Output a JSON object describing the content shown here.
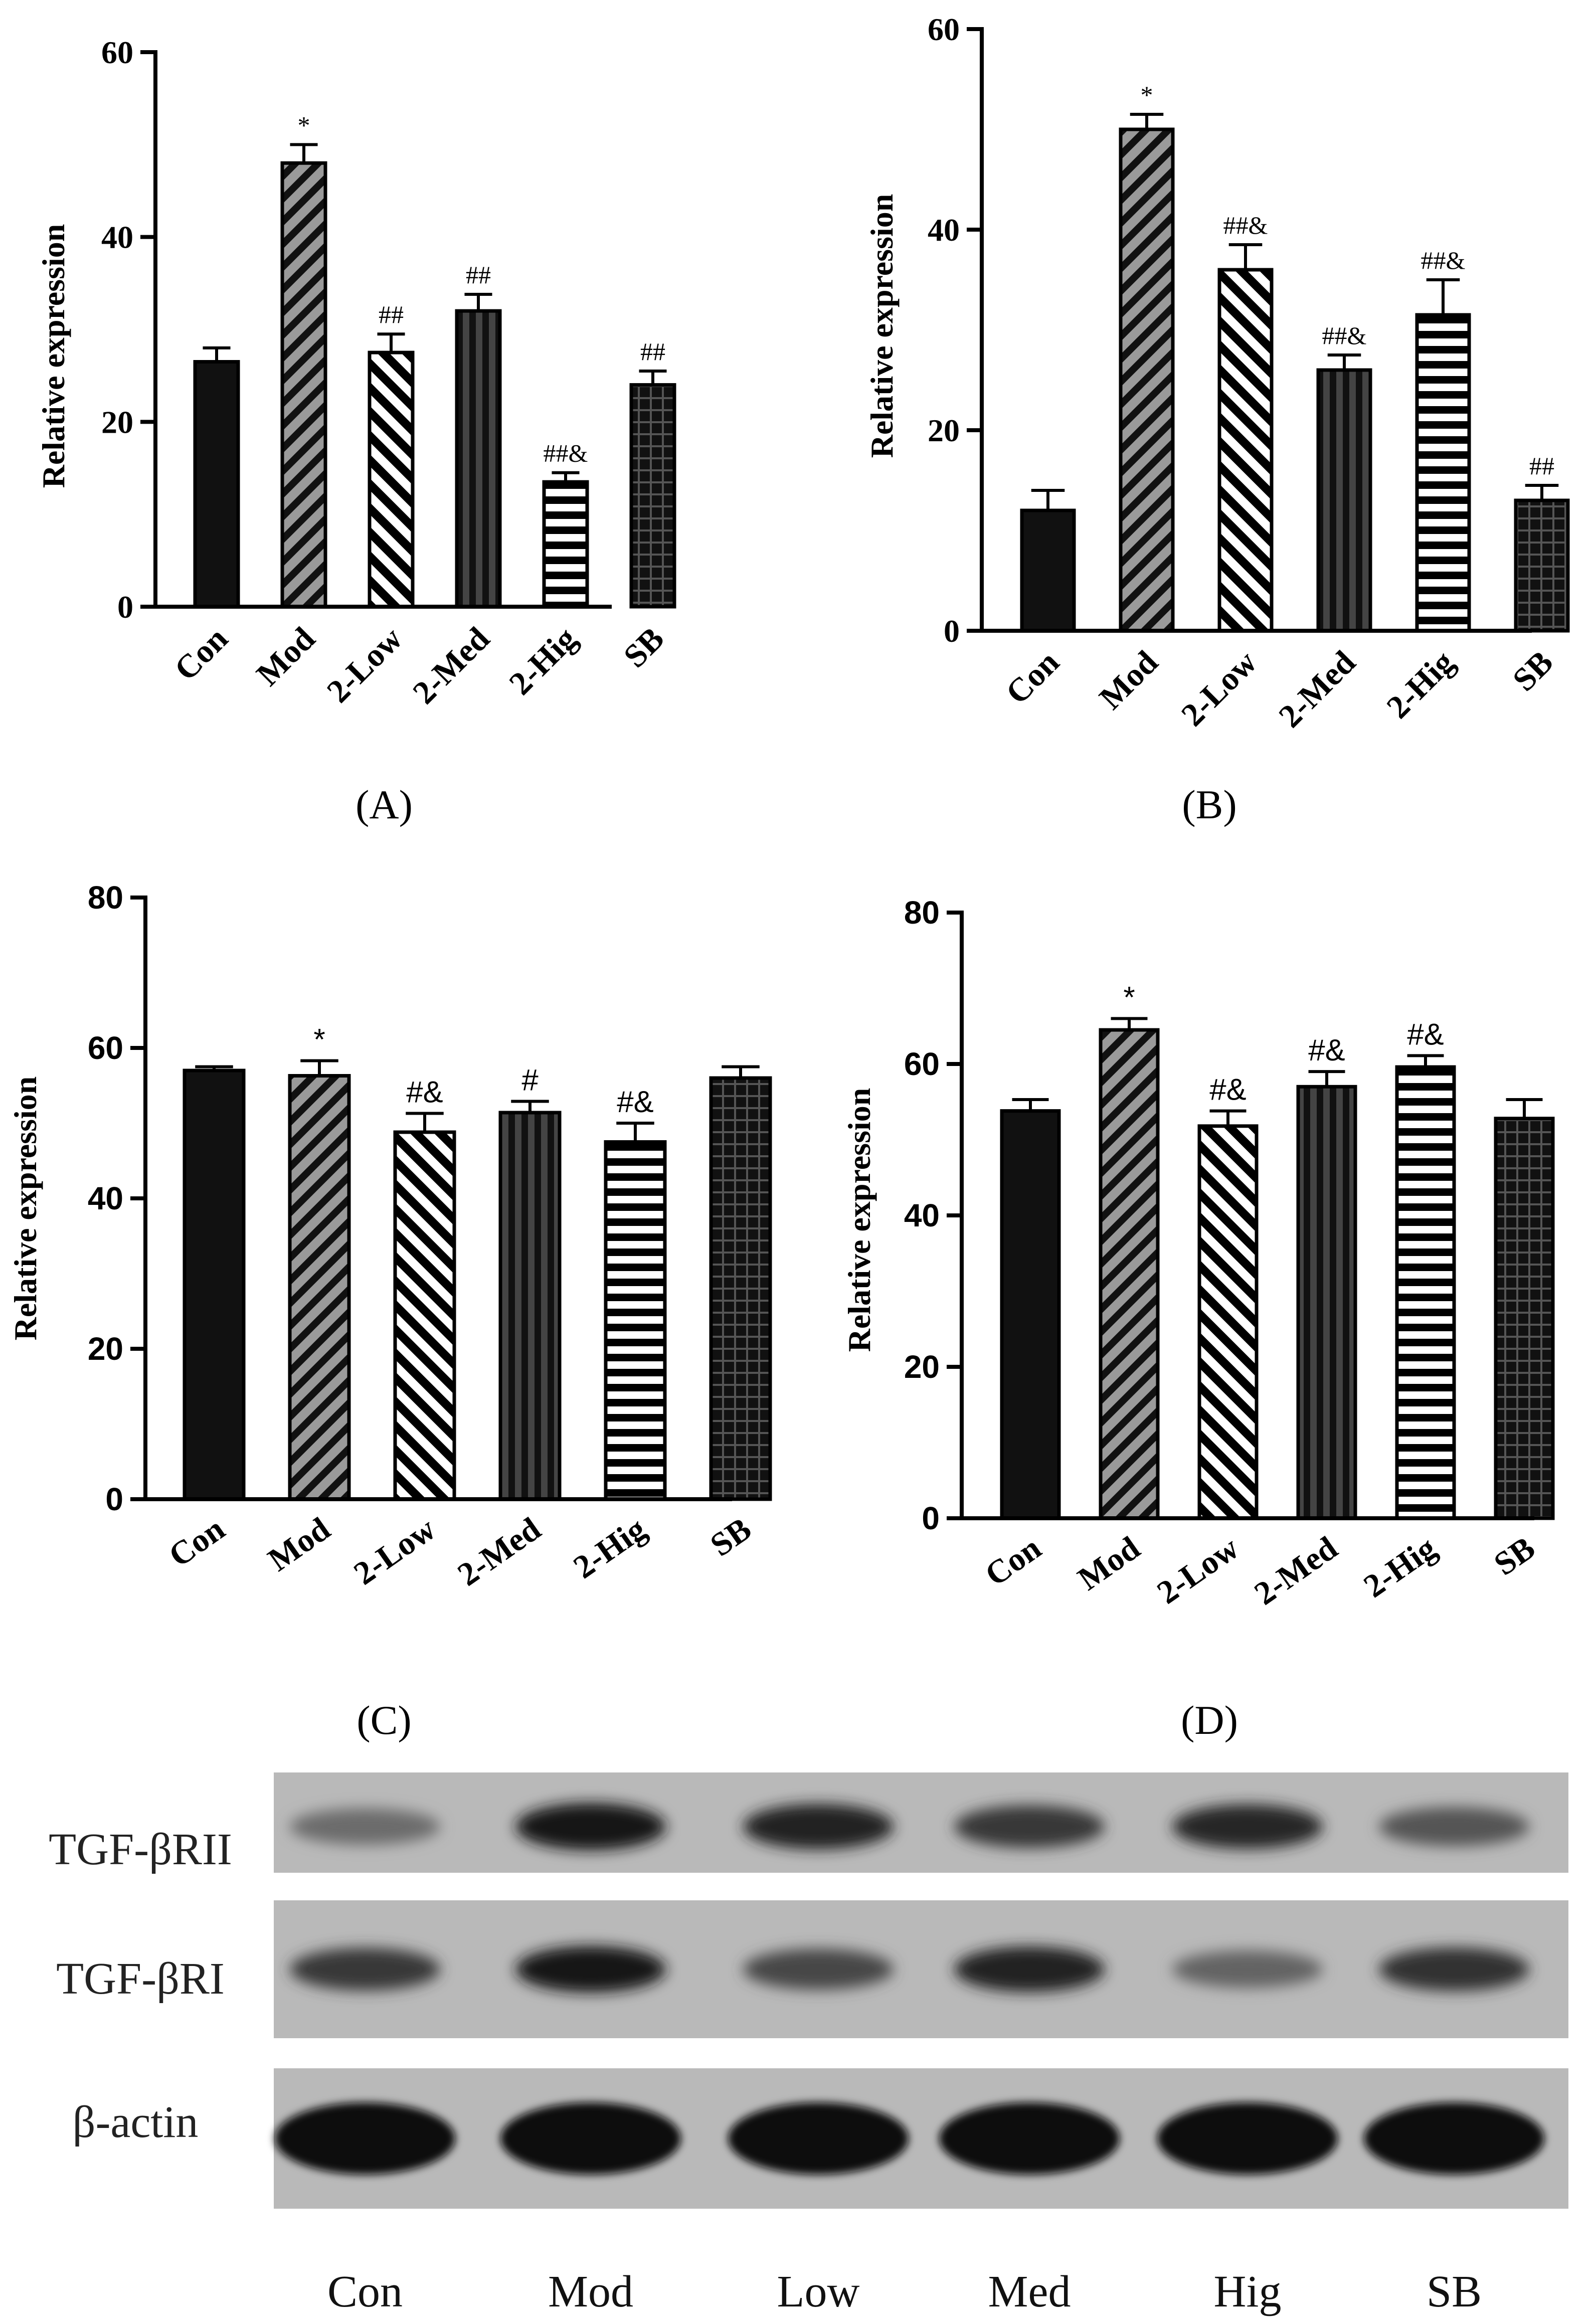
{
  "chart_data": [
    {
      "type": "bar",
      "panel": "A",
      "ylabel": "Relative expression",
      "ylim": [
        0,
        60
      ],
      "yticks": [
        "0",
        "20",
        "40",
        "60"
      ],
      "categories": [
        "Con",
        "Mod",
        "2-Low",
        "2-Med",
        "2-Hig",
        "SB"
      ],
      "values": [
        26.5,
        48.0,
        27.5,
        32.0,
        13.5,
        24.0
      ],
      "errors": [
        1.5,
        2.0,
        2.0,
        1.8,
        1.0,
        1.5
      ],
      "annotations": [
        "",
        "*",
        "##",
        "##",
        "##&",
        "##"
      ]
    },
    {
      "type": "bar",
      "panel": "B",
      "ylabel": "Relative expression",
      "ylim": [
        0,
        60
      ],
      "yticks": [
        "0",
        "20",
        "40",
        "60"
      ],
      "categories": [
        "Con",
        "Mod",
        "2-Low",
        "2-Med",
        "2-Hig",
        "SB"
      ],
      "values": [
        12.0,
        50.0,
        36.0,
        26.0,
        31.5,
        13.0
      ],
      "errors": [
        2.0,
        1.5,
        2.5,
        1.5,
        3.5,
        1.5
      ],
      "annotations": [
        "",
        "*",
        "##&",
        "##&",
        "##&",
        "##"
      ]
    },
    {
      "type": "bar",
      "panel": "C",
      "ylabel": "Relative expression",
      "ylim": [
        0,
        80
      ],
      "yticks": [
        "0",
        "20",
        "40",
        "60",
        "80"
      ],
      "categories": [
        "Con",
        "Mod",
        "2-Low",
        "2-Med",
        "2-Hig",
        "SB"
      ],
      "values": [
        57.0,
        56.3,
        48.8,
        51.4,
        47.5,
        56.0
      ],
      "errors": [
        0.5,
        2.0,
        2.5,
        1.5,
        2.5,
        1.5
      ],
      "annotations": [
        "",
        "*",
        "#&",
        "#",
        "#&",
        ""
      ]
    },
    {
      "type": "bar",
      "panel": "D",
      "ylabel": "Relative expression",
      "ylim": [
        0,
        80
      ],
      "yticks": [
        "0",
        "20",
        "40",
        "60",
        "80"
      ],
      "categories": [
        "Con",
        "Mod",
        "2-Low",
        "2-Med",
        "2-Hig",
        "SB"
      ],
      "values": [
        53.8,
        64.5,
        51.8,
        57.0,
        59.6,
        52.8
      ],
      "errors": [
        1.5,
        1.5,
        2.0,
        2.0,
        1.5,
        2.5
      ],
      "annotations": [
        "",
        "*",
        "#&",
        "#&",
        "#&",
        ""
      ]
    }
  ],
  "panel_labels": [
    "(A)",
    "(B)",
    "(C)",
    "(D)"
  ],
  "blot": {
    "rows": [
      "TGF-βRII",
      "TGF-βRI",
      "β-actin"
    ],
    "lanes": [
      "Con",
      "Mod",
      "Low",
      "Med",
      "Hig",
      "SB"
    ],
    "intensity": [
      [
        0.35,
        0.95,
        0.85,
        0.7,
        0.8,
        0.5
      ],
      [
        0.7,
        0.9,
        0.6,
        0.85,
        0.4,
        0.75
      ],
      [
        1.0,
        1.0,
        1.0,
        1.0,
        1.0,
        1.0
      ]
    ]
  },
  "colors": {
    "bar_dark": "#111111",
    "bar_grey": "#9a9a9a",
    "blot_bg": "#b9b9b9",
    "band": "#0b0b0b"
  }
}
